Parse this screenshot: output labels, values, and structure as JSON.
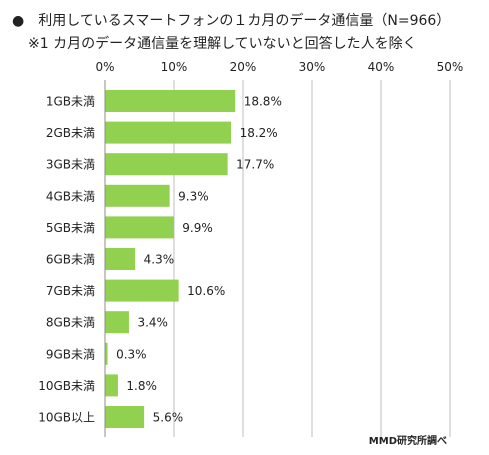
{
  "header": {
    "bullet": "●",
    "title": "利用しているスマートフォンの１カ月のデータ通信量（N=966）",
    "subtitle": "※1 カ月のデータ通信量を理解していないと回答した人を除く"
  },
  "source": "MMD研究所調べ",
  "colors": {
    "bar": "#92D050",
    "grid": "#BFBFBF",
    "text": "#222222"
  },
  "chart_data": {
    "type": "bar",
    "orientation": "horizontal",
    "title": "利用しているスマートフォンの１カ月のデータ通信量（N=966）",
    "categories": [
      "1GB未満",
      "2GB未満",
      "3GB未満",
      "4GB未満",
      "5GB未満",
      "6GB未満",
      "7GB未満",
      "8GB未満",
      "9GB未満",
      "10GB未満",
      "10GB以上"
    ],
    "values": [
      18.8,
      18.2,
      17.7,
      9.3,
      9.9,
      4.3,
      10.6,
      3.4,
      0.3,
      1.8,
      5.6
    ],
    "value_labels": [
      "18.8%",
      "18.2%",
      "17.7%",
      "9.3%",
      "9.9%",
      "4.3%",
      "10.6%",
      "3.4%",
      "0.3%",
      "1.8%",
      "5.6%"
    ],
    "x_ticks": [
      0,
      10,
      20,
      30,
      40,
      50
    ],
    "x_tick_labels": [
      "0%",
      "10%",
      "20%",
      "30%",
      "40%",
      "50%"
    ],
    "xlim": [
      0,
      50
    ],
    "axis_position": "top",
    "grid": true,
    "legend": "none"
  }
}
